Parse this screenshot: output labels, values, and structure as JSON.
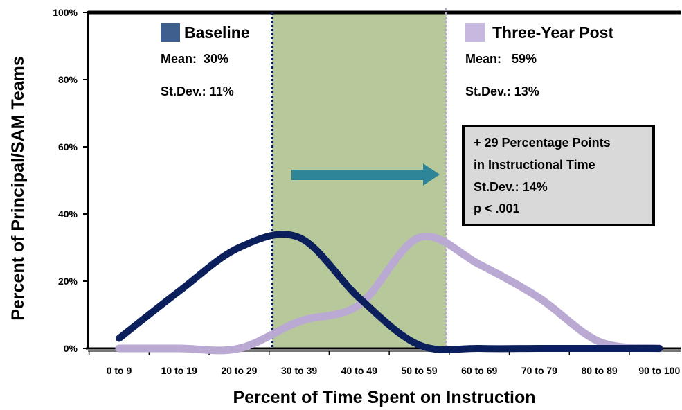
{
  "chart_data": {
    "type": "line",
    "xlabel": "Percent of Time Spent on Instruction",
    "ylabel": "Percent of Principal/SAM Teams",
    "categories": [
      "0 to 9",
      "10 to 19",
      "20 to 29",
      "30 to 39",
      "40 to 49",
      "50 to 59",
      "60 to 69",
      "70 to 79",
      "80 to 89",
      "90 to 100"
    ],
    "ylim": [
      0,
      100
    ],
    "yticks": [
      "0%",
      "20%",
      "40%",
      "60%",
      "80%",
      "100%"
    ],
    "series": [
      {
        "name": "Baseline",
        "color": "#0b1f5c",
        "legend_color": "#3f5f8f",
        "values": [
          3,
          17,
          30,
          33,
          15,
          1,
          0,
          0,
          0,
          0
        ],
        "mean_text": "Mean:  30%",
        "sd_text": "St.Dev.: 11%"
      },
      {
        "name": "Three-Year Post",
        "color": "#b9a9d3",
        "legend_color": "#c6b8df",
        "values": [
          0,
          0,
          0,
          8,
          13,
          33,
          25,
          15,
          2,
          0
        ],
        "mean_text": "Mean:   59%",
        "sd_text": "St.Dev.: 13%"
      }
    ],
    "shaded_region": {
      "from": 30,
      "to": 59,
      "color": "#b7c99b"
    },
    "annotation_box": [
      "+ 29 Percentage Points",
      "in Instructional Time",
      "St.Dev.: 14%",
      "p < .001"
    ],
    "arrow_color": "#2f8598",
    "grid": false
  }
}
